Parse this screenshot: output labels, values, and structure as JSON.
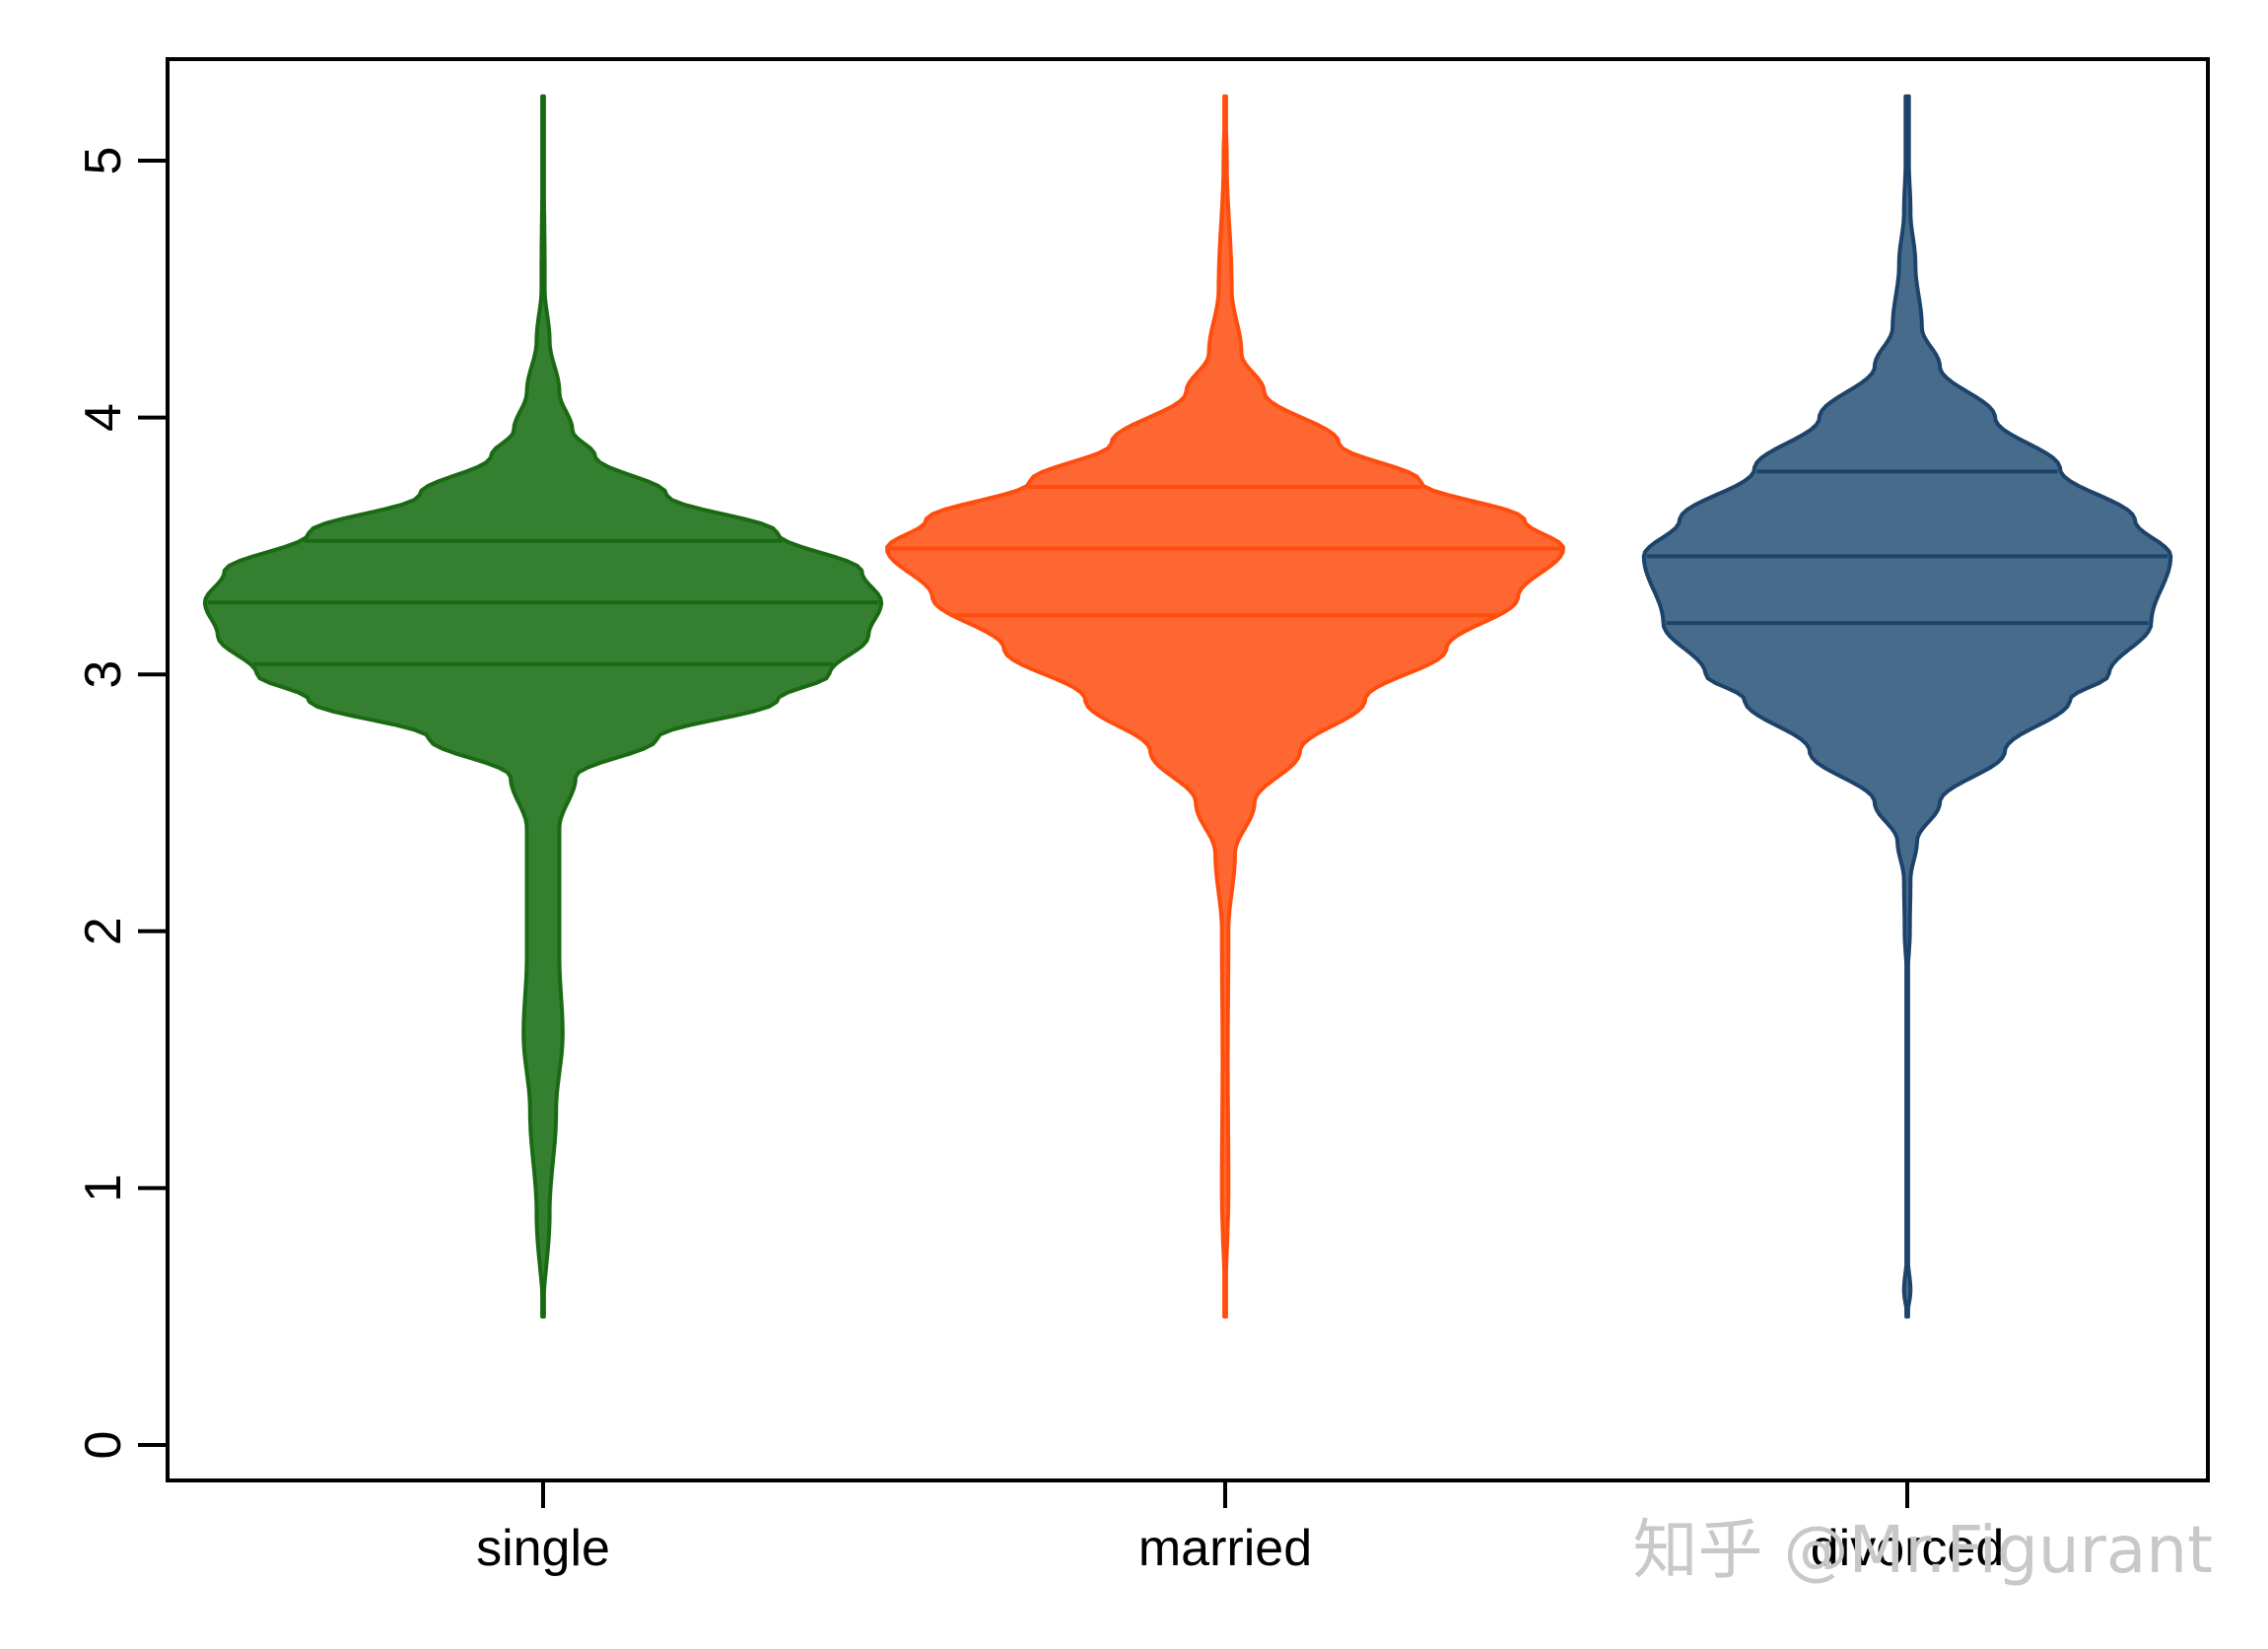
{
  "chart_data": {
    "type": "violin",
    "title": "",
    "xlabel": "",
    "ylabel": "",
    "ylim": [
      0,
      5.25
    ],
    "yticks": [
      0,
      1,
      2,
      3,
      4,
      5
    ],
    "categories": [
      "single",
      "married",
      "divorced"
    ],
    "grid": false,
    "series": [
      {
        "category": "single",
        "color": "#357f31",
        "stroke": "#1a6a14",
        "range": [
          0.5,
          5.25
        ],
        "quartiles": [
          3.04,
          3.28,
          3.52
        ],
        "profile": [
          [
            0.5,
            0.0
          ],
          [
            0.9,
            0.02
          ],
          [
            1.3,
            0.04
          ],
          [
            1.6,
            0.06
          ],
          [
            1.9,
            0.05
          ],
          [
            2.1,
            0.05
          ],
          [
            2.4,
            0.05
          ],
          [
            2.6,
            0.1
          ],
          [
            2.75,
            0.35
          ],
          [
            2.9,
            0.72
          ],
          [
            3.0,
            0.88
          ],
          [
            3.15,
            1.0
          ],
          [
            3.28,
            1.04
          ],
          [
            3.4,
            0.98
          ],
          [
            3.55,
            0.72
          ],
          [
            3.7,
            0.38
          ],
          [
            3.85,
            0.16
          ],
          [
            3.95,
            0.09
          ],
          [
            4.1,
            0.05
          ],
          [
            4.3,
            0.02
          ],
          [
            4.5,
            0.005
          ],
          [
            5.25,
            0.0
          ]
        ]
      },
      {
        "category": "married",
        "color": "#ff6732",
        "stroke": "#ff4d0d",
        "range": [
          0.5,
          5.25
        ],
        "quartiles": [
          3.23,
          3.49,
          3.73
        ],
        "profile": [
          [
            0.5,
            0.0
          ],
          [
            1.0,
            0.01
          ],
          [
            1.5,
            0.008
          ],
          [
            2.0,
            0.01
          ],
          [
            2.3,
            0.03
          ],
          [
            2.5,
            0.09
          ],
          [
            2.7,
            0.23
          ],
          [
            2.9,
            0.43
          ],
          [
            3.1,
            0.68
          ],
          [
            3.3,
            0.9
          ],
          [
            3.49,
            1.04
          ],
          [
            3.6,
            0.92
          ],
          [
            3.75,
            0.6
          ],
          [
            3.9,
            0.35
          ],
          [
            4.1,
            0.12
          ],
          [
            4.25,
            0.05
          ],
          [
            4.5,
            0.02
          ],
          [
            5.0,
            0.005
          ],
          [
            5.25,
            0.0
          ]
        ]
      },
      {
        "category": "divorced",
        "color": "#476b8b",
        "stroke": "#1d436a",
        "range": [
          0.5,
          5.25
        ],
        "quartiles": [
          3.2,
          3.46,
          3.79
        ],
        "profile": [
          [
            0.5,
            0.0
          ],
          [
            0.6,
            0.01
          ],
          [
            0.75,
            0.0
          ],
          [
            1.8,
            0.0
          ],
          [
            2.0,
            0.008
          ],
          [
            2.2,
            0.01
          ],
          [
            2.35,
            0.03
          ],
          [
            2.5,
            0.1
          ],
          [
            2.7,
            0.3
          ],
          [
            2.9,
            0.5
          ],
          [
            3.0,
            0.62
          ],
          [
            3.2,
            0.75
          ],
          [
            3.46,
            0.81
          ],
          [
            3.6,
            0.7
          ],
          [
            3.8,
            0.47
          ],
          [
            4.0,
            0.27
          ],
          [
            4.2,
            0.1
          ],
          [
            4.35,
            0.045
          ],
          [
            4.6,
            0.025
          ],
          [
            4.8,
            0.01
          ],
          [
            5.0,
            0.005
          ],
          [
            5.25,
            0.005
          ]
        ]
      }
    ]
  },
  "watermark": "知乎 @Mr.Figurant"
}
